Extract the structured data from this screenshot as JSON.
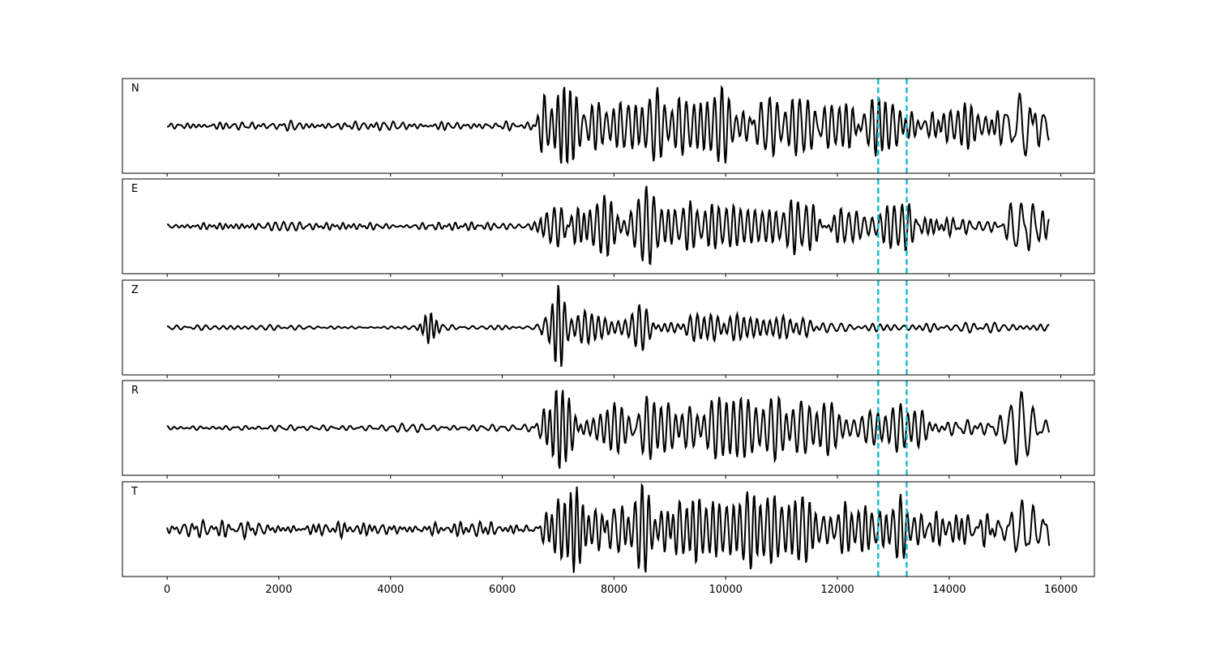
{
  "chart_data": {
    "type": "line",
    "panels": [
      {
        "label": "N",
        "events": [
          {
            "x": 6720,
            "amp": 0.55,
            "width": 90,
            "cycle": 120
          },
          {
            "x": 7100,
            "amp": 0.95,
            "width": 250,
            "cycle": 110
          },
          {
            "x": 8400,
            "amp": 0.6,
            "width": 800,
            "cycle": 130
          },
          {
            "x": 9600,
            "amp": 0.45,
            "width": 1000,
            "cycle": 125
          },
          {
            "x": 11000,
            "amp": 0.5,
            "width": 1400,
            "cycle": 140
          },
          {
            "x": 12600,
            "amp": 0.35,
            "width": 900,
            "cycle": 120
          },
          {
            "x": 14400,
            "amp": 0.3,
            "width": 700,
            "cycle": 120
          },
          {
            "x": 15300,
            "amp": 0.85,
            "width": 220,
            "cycle": 210
          }
        ],
        "noise_amp": 0.1,
        "late_noise_amp": 0.38
      },
      {
        "label": "E",
        "events": [
          {
            "x": 6900,
            "amp": 0.45,
            "width": 250,
            "cycle": 120
          },
          {
            "x": 7700,
            "amp": 0.5,
            "width": 500,
            "cycle": 120
          },
          {
            "x": 8600,
            "amp": 0.9,
            "width": 260,
            "cycle": 140
          },
          {
            "x": 9800,
            "amp": 0.4,
            "width": 900,
            "cycle": 130
          },
          {
            "x": 11500,
            "amp": 0.38,
            "width": 1300,
            "cycle": 130
          },
          {
            "x": 13000,
            "amp": 0.5,
            "width": 400,
            "cycle": 130
          },
          {
            "x": 15300,
            "amp": 0.6,
            "width": 260,
            "cycle": 200
          }
        ],
        "noise_amp": 0.1,
        "late_noise_amp": 0.3
      },
      {
        "label": "Z",
        "events": [
          {
            "x": 4700,
            "amp": 0.35,
            "width": 150,
            "cycle": 100
          },
          {
            "x": 7000,
            "amp": 0.9,
            "width": 130,
            "cycle": 110
          },
          {
            "x": 7500,
            "amp": 0.3,
            "width": 500,
            "cycle": 120
          },
          {
            "x": 8500,
            "amp": 0.55,
            "width": 220,
            "cycle": 130
          },
          {
            "x": 9800,
            "amp": 0.25,
            "width": 900,
            "cycle": 120
          },
          {
            "x": 11000,
            "amp": 0.22,
            "width": 800,
            "cycle": 120
          }
        ],
        "noise_amp": 0.06,
        "late_noise_amp": 0.14
      },
      {
        "label": "R",
        "events": [
          {
            "x": 7050,
            "amp": 0.95,
            "width": 280,
            "cycle": 115
          },
          {
            "x": 8000,
            "amp": 0.55,
            "width": 500,
            "cycle": 125
          },
          {
            "x": 8600,
            "amp": 0.75,
            "width": 280,
            "cycle": 135
          },
          {
            "x": 9800,
            "amp": 0.45,
            "width": 1000,
            "cycle": 130
          },
          {
            "x": 11300,
            "amp": 0.52,
            "width": 1300,
            "cycle": 135
          },
          {
            "x": 13100,
            "amp": 0.5,
            "width": 400,
            "cycle": 130
          },
          {
            "x": 15300,
            "amp": 0.85,
            "width": 250,
            "cycle": 200
          }
        ],
        "noise_amp": 0.09,
        "late_noise_amp": 0.32
      },
      {
        "label": "T",
        "events": [
          {
            "x": 7200,
            "amp": 0.7,
            "width": 350,
            "cycle": 110
          },
          {
            "x": 8500,
            "amp": 0.95,
            "width": 350,
            "cycle": 120
          },
          {
            "x": 9800,
            "amp": 0.6,
            "width": 1000,
            "cycle": 120
          },
          {
            "x": 11300,
            "amp": 0.55,
            "width": 1300,
            "cycle": 125
          },
          {
            "x": 13200,
            "amp": 0.5,
            "width": 500,
            "cycle": 125
          },
          {
            "x": 15250,
            "amp": 0.7,
            "width": 250,
            "cycle": 190
          }
        ],
        "noise_amp": 0.17,
        "late_noise_amp": 0.42
      }
    ],
    "x_start": 0,
    "x_end": 15800,
    "xlim": [
      -800,
      16600
    ],
    "ylim": [
      -1.1,
      1.1
    ],
    "xticks": [
      0,
      2000,
      4000,
      6000,
      8000,
      10000,
      12000,
      14000,
      16000
    ],
    "vlines": [
      12730,
      13240
    ],
    "line_color": "#000000",
    "vline_color": "#17becf",
    "grid": false,
    "legend": "none"
  }
}
